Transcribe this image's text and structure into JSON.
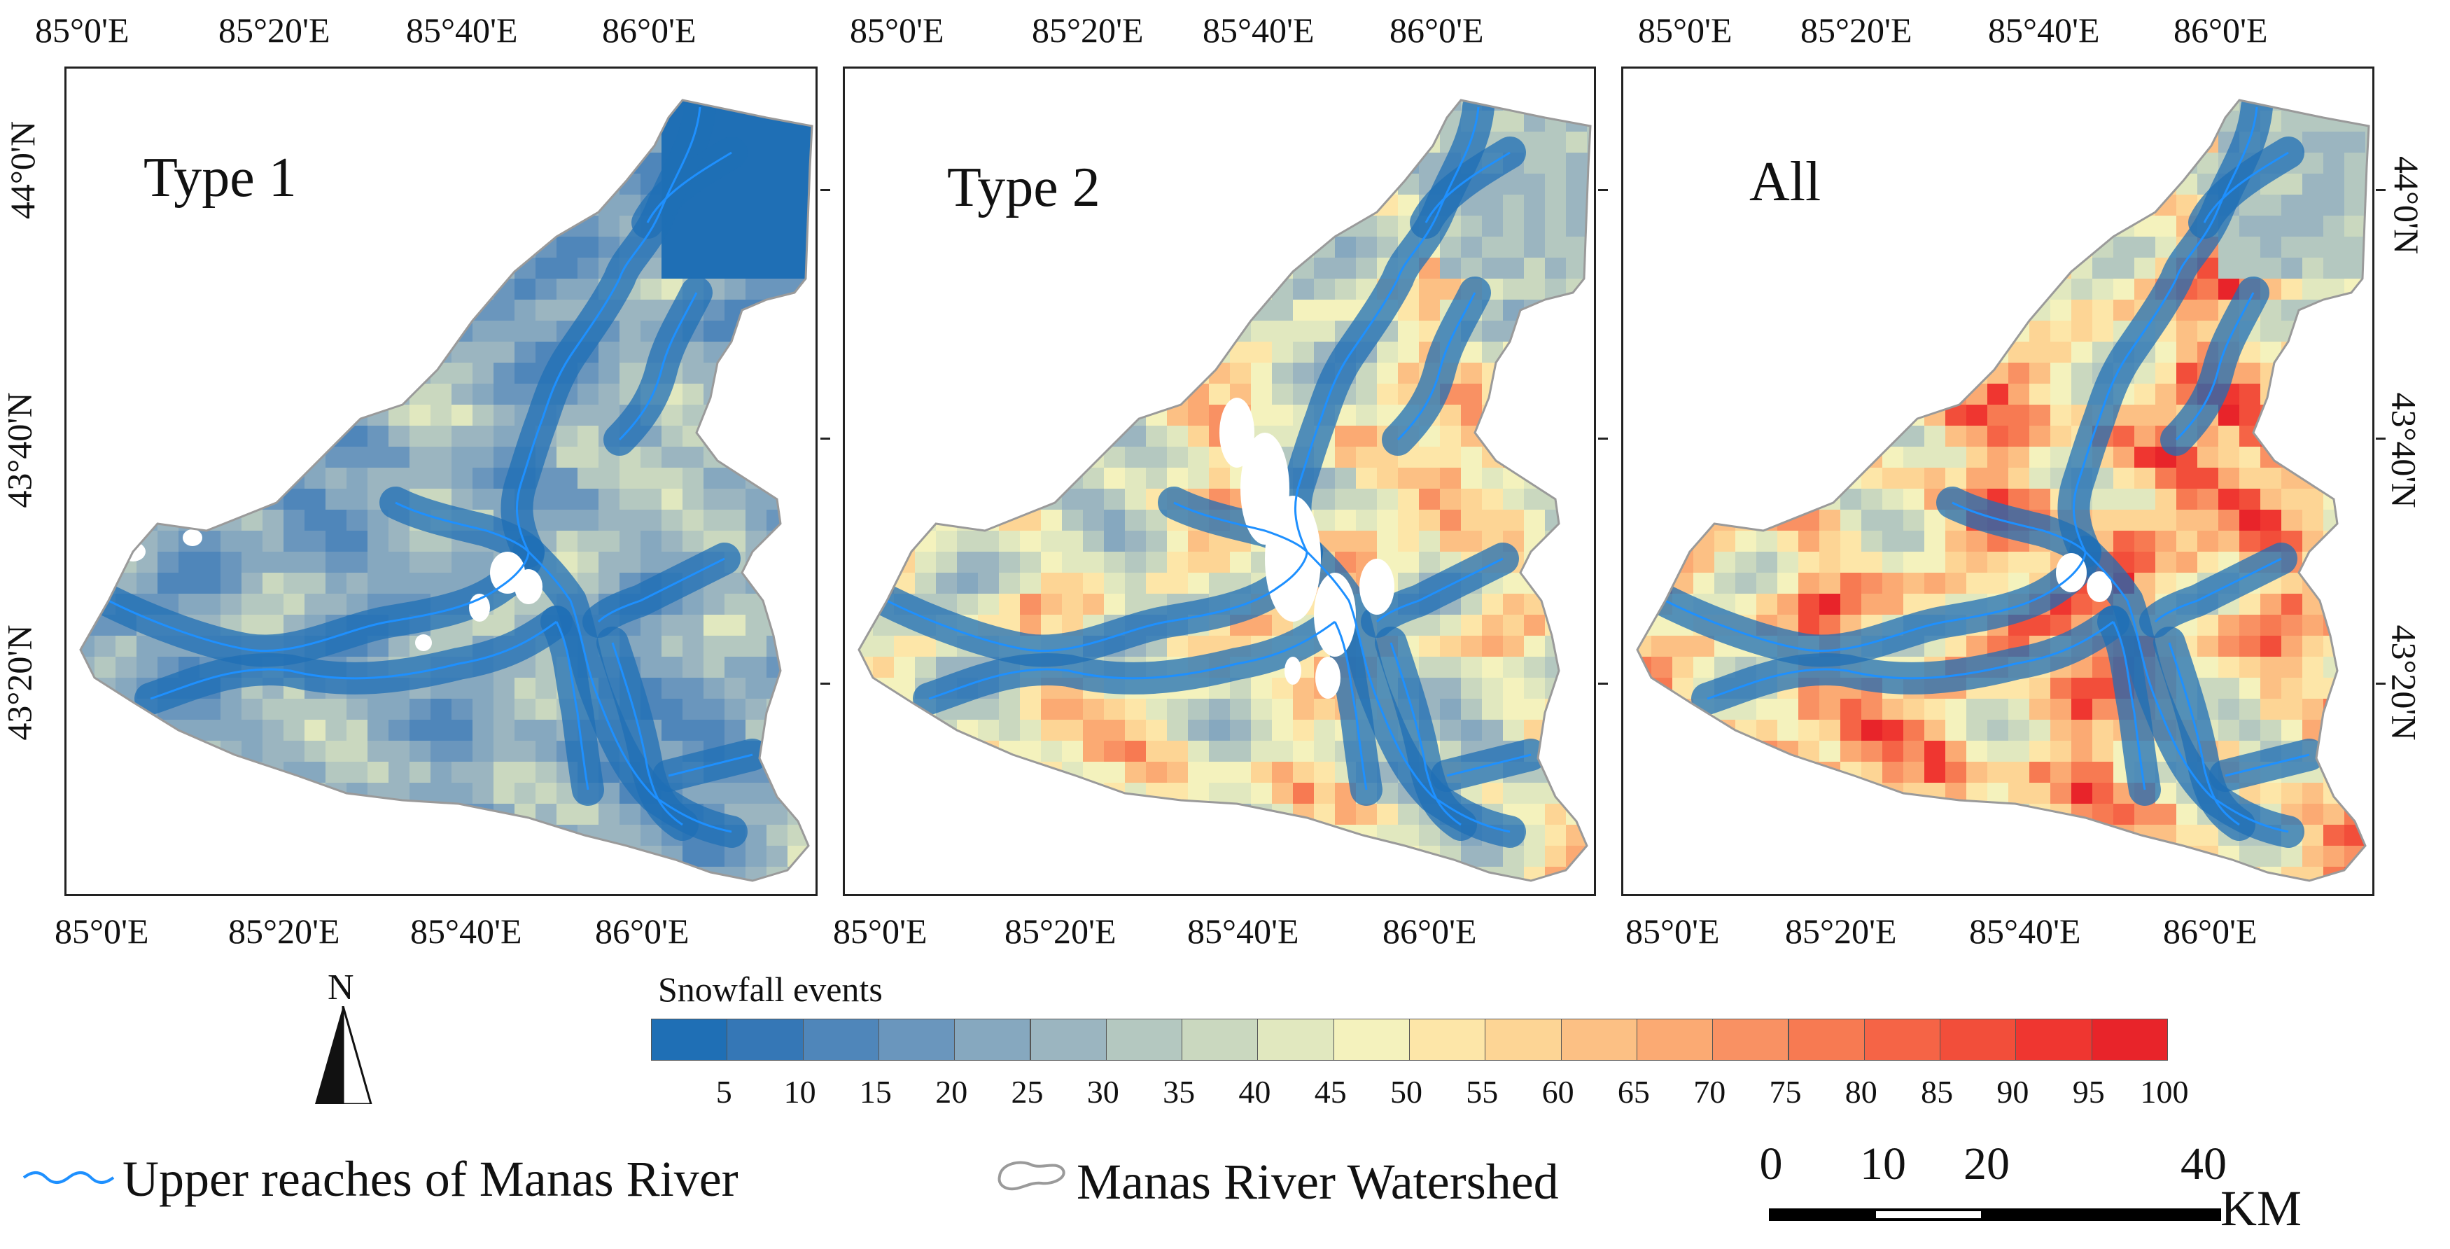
{
  "panels": [
    {
      "title": "Type 1",
      "palette": "type1"
    },
    {
      "title": "Type 2",
      "palette": "type2"
    },
    {
      "title": "All",
      "palette": "all"
    }
  ],
  "axes": {
    "lon_labels": [
      "85°0'E",
      "85°20'E",
      "85°40'E",
      "86°0'E"
    ],
    "lat_labels": [
      "44°0'N",
      "43°40'N",
      "43°20'N"
    ]
  },
  "legend": {
    "title": "Snowfall events",
    "ticks": [
      "5",
      "10",
      "15",
      "20",
      "25",
      "30",
      "35",
      "40",
      "45",
      "50",
      "55",
      "60",
      "65",
      "70",
      "75",
      "80",
      "85",
      "90",
      "95",
      "100"
    ],
    "colors": [
      "#1f6fb5",
      "#3577b6",
      "#4f86ba",
      "#6a96bd",
      "#86a8bf",
      "#9bb5c0",
      "#b4c8c0",
      "#cad8bf",
      "#e1e8bf",
      "#f4f2bd",
      "#fde6a8",
      "#fdd595",
      "#fcc084",
      "#fbaa73",
      "#f99163",
      "#f77a52",
      "#f56446",
      "#f24e3a",
      "#ef3630",
      "#e8242a"
    ]
  },
  "north": {
    "label": "N"
  },
  "river_legend": {
    "label": "Upper reaches of Manas River",
    "color": "#1e90ff"
  },
  "watershed_legend": {
    "label": "Manas River Watershed",
    "color": "#9a9a9a"
  },
  "scale_bar": {
    "labels": [
      "0",
      "10",
      "20",
      "40"
    ],
    "unit": "KM"
  }
}
